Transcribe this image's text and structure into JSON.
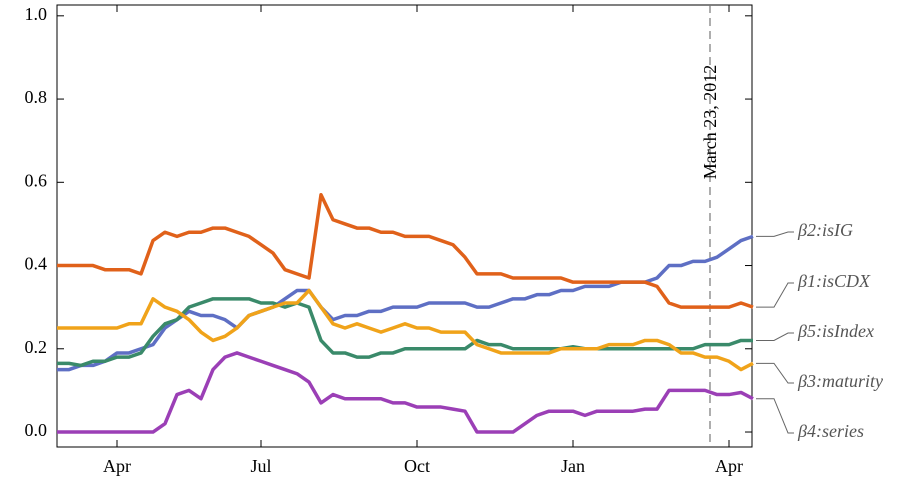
{
  "chart_data": {
    "type": "line",
    "annotation": "March 23, 2012",
    "categories": [
      null,
      null,
      null,
      null,
      null,
      "Apr",
      null,
      null,
      null,
      null,
      null,
      null,
      null,
      null,
      null,
      null,
      null,
      "Jul",
      null,
      null,
      null,
      null,
      null,
      null,
      null,
      null,
      null,
      null,
      null,
      null,
      "Oct",
      null,
      null,
      null,
      null,
      null,
      null,
      null,
      null,
      null,
      null,
      null,
      null,
      "Jan",
      null,
      null,
      null,
      null,
      null,
      null,
      null,
      null,
      null,
      null,
      null,
      null,
      "Apr",
      null,
      null
    ],
    "ylim": [
      -0.036,
      1.026
    ],
    "yticks": [
      {
        "value": 0,
        "label": "0.0"
      },
      0.2,
      0.4,
      0.6,
      0.8,
      {
        "value": 1,
        "label": "1.0"
      }
    ],
    "series": [
      {
        "name": "β2:isIG",
        "color": "#5e6fc4",
        "values": [
          0.15,
          0.15,
          0.16,
          0.16,
          0.17,
          0.19,
          0.19,
          0.2,
          0.21,
          0.25,
          0.27,
          0.29,
          0.28,
          0.28,
          0.27,
          0.25,
          0.28,
          0.29,
          0.3,
          0.32,
          0.34,
          0.34,
          0.3,
          0.27,
          0.28,
          0.28,
          0.29,
          0.29,
          0.3,
          0.3,
          0.3,
          0.31,
          0.31,
          0.31,
          0.31,
          0.3,
          0.3,
          0.31,
          0.32,
          0.32,
          0.33,
          0.33,
          0.34,
          0.34,
          0.35,
          0.35,
          0.35,
          0.36,
          0.36,
          0.36,
          0.37,
          0.4,
          0.4,
          0.41,
          0.41,
          0.42,
          0.44,
          0.46,
          0.47
        ]
      },
      {
        "name": "β1:isCDX",
        "color": "#e0611a",
        "values": [
          0.4,
          0.4,
          0.4,
          0.4,
          0.39,
          0.39,
          0.39,
          0.38,
          0.46,
          0.48,
          0.47,
          0.48,
          0.48,
          0.49,
          0.49,
          0.48,
          0.47,
          0.45,
          0.43,
          0.39,
          0.38,
          0.37,
          0.57,
          0.51,
          0.5,
          0.49,
          0.49,
          0.48,
          0.48,
          0.47,
          0.47,
          0.47,
          0.46,
          0.45,
          0.42,
          0.38,
          0.38,
          0.38,
          0.37,
          0.37,
          0.37,
          0.37,
          0.37,
          0.36,
          0.36,
          0.36,
          0.36,
          0.36,
          0.36,
          0.36,
          0.35,
          0.31,
          0.3,
          0.3,
          0.3,
          0.3,
          0.3,
          0.31,
          0.3
        ]
      },
      {
        "name": "β5:isIndex",
        "color": "#3a8a6a",
        "values": [
          0.165,
          0.165,
          0.16,
          0.17,
          0.17,
          0.18,
          0.18,
          0.19,
          0.23,
          0.26,
          0.27,
          0.3,
          0.31,
          0.32,
          0.32,
          0.32,
          0.32,
          0.31,
          0.31,
          0.3,
          0.31,
          0.3,
          0.22,
          0.19,
          0.19,
          0.18,
          0.18,
          0.19,
          0.19,
          0.2,
          0.2,
          0.2,
          0.2,
          0.2,
          0.2,
          0.22,
          0.21,
          0.21,
          0.2,
          0.2,
          0.2,
          0.2,
          0.2,
          0.205,
          0.2,
          0.2,
          0.2,
          0.2,
          0.2,
          0.2,
          0.2,
          0.2,
          0.2,
          0.2,
          0.21,
          0.21,
          0.21,
          0.22,
          0.22
        ]
      },
      {
        "name": "β3:maturity",
        "color": "#f0a31a",
        "values": [
          0.25,
          0.25,
          0.25,
          0.25,
          0.25,
          0.25,
          0.26,
          0.26,
          0.32,
          0.3,
          0.29,
          0.27,
          0.24,
          0.22,
          0.23,
          0.25,
          0.28,
          0.29,
          0.3,
          0.31,
          0.31,
          0.34,
          0.3,
          0.26,
          0.25,
          0.26,
          0.25,
          0.24,
          0.25,
          0.26,
          0.25,
          0.25,
          0.24,
          0.24,
          0.24,
          0.21,
          0.2,
          0.19,
          0.19,
          0.19,
          0.19,
          0.19,
          0.2,
          0.2,
          0.2,
          0.2,
          0.21,
          0.21,
          0.21,
          0.22,
          0.22,
          0.21,
          0.19,
          0.19,
          0.18,
          0.18,
          0.17,
          0.15,
          0.165
        ]
      },
      {
        "name": "β4:series",
        "color": "#9b3fb6",
        "values": [
          0,
          0,
          0,
          0,
          0,
          0,
          0,
          0,
          0,
          0.02,
          0.09,
          0.1,
          0.08,
          0.15,
          0.18,
          0.19,
          0.18,
          0.17,
          0.16,
          0.15,
          0.14,
          0.12,
          0.07,
          0.09,
          0.08,
          0.08,
          0.08,
          0.08,
          0.07,
          0.07,
          0.06,
          0.06,
          0.06,
          0.055,
          0.05,
          0,
          0,
          0,
          0,
          0.02,
          0.04,
          0.05,
          0.05,
          0.05,
          0.04,
          0.05,
          0.05,
          0.05,
          0.05,
          0.055,
          0.055,
          0.1,
          0.1,
          0.1,
          0.1,
          0.09,
          0.09,
          0.095,
          0.08
        ]
      }
    ]
  }
}
